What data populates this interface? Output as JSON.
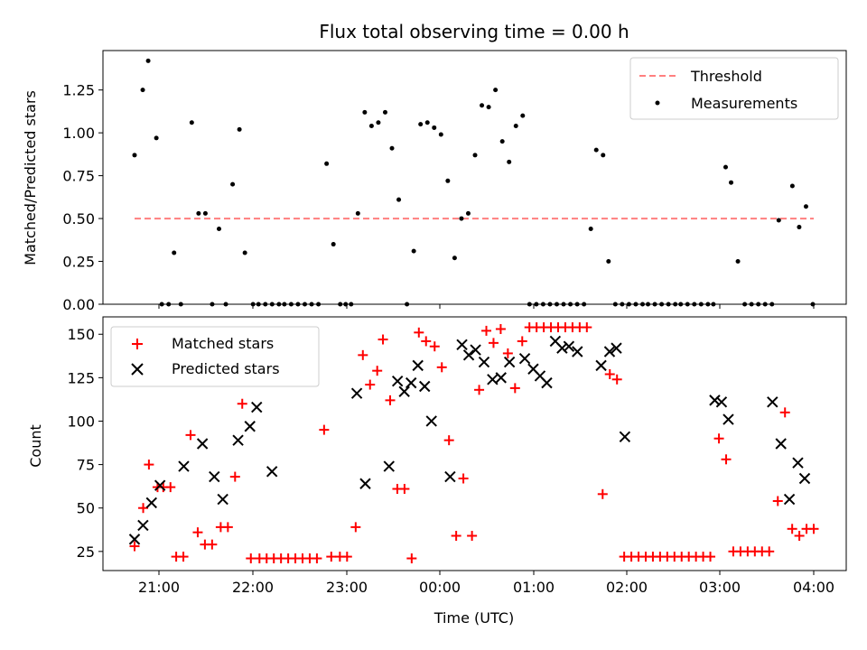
{
  "chart_data": [
    {
      "type": "scatter",
      "title": "Flux total observing time = 0.00 h",
      "xlabel": "",
      "ylabel": "Matched/Predicted stars",
      "ylim": [
        0,
        1.48
      ],
      "yticks": [
        "0.00",
        "0.25",
        "0.50",
        "0.75",
        "1.00",
        "1.25"
      ],
      "threshold": {
        "name": "Threshold",
        "value": 0.5,
        "x_from": 0,
        "x_to": 435,
        "color": "#ff7f7f"
      },
      "legend_position": "upper right",
      "series": [
        {
          "name": "Measurements",
          "color": "#000000",
          "points": [
            [
              0,
              0.87
            ],
            [
              6,
              1.25
            ],
            [
              10,
              1.41
            ],
            [
              16,
              0.97
            ],
            [
              20,
              0
            ],
            [
              25,
              0
            ],
            [
              29,
              0.3
            ],
            [
              34,
              0
            ],
            [
              42,
              1.06
            ],
            [
              47,
              0.53
            ],
            [
              52,
              0.53
            ],
            [
              57,
              0
            ],
            [
              62,
              0.44
            ],
            [
              67,
              0
            ],
            [
              72,
              0.7
            ],
            [
              77,
              1.02
            ],
            [
              81,
              0.3
            ],
            [
              87,
              0
            ],
            [
              91,
              0
            ],
            [
              96,
              0
            ],
            [
              101,
              0
            ],
            [
              106,
              0
            ],
            [
              110,
              0
            ],
            [
              115,
              0
            ],
            [
              120,
              0
            ],
            [
              125,
              0
            ],
            [
              130,
              0
            ],
            [
              135,
              0
            ],
            [
              130,
              0
            ],
            [
              130,
              0
            ],
            [
              130,
              0
            ],
            [
              130,
              0
            ],
            [
              130,
              0
            ],
            [
              130,
              0
            ],
            [
              130,
              0
            ],
            [
              130,
              0
            ],
            [
              130,
              0
            ],
            [
              130,
              0
            ],
            [
              130,
              0
            ],
            [
              130,
              0
            ]
          ]
        }
      ]
    }
  ]
}
